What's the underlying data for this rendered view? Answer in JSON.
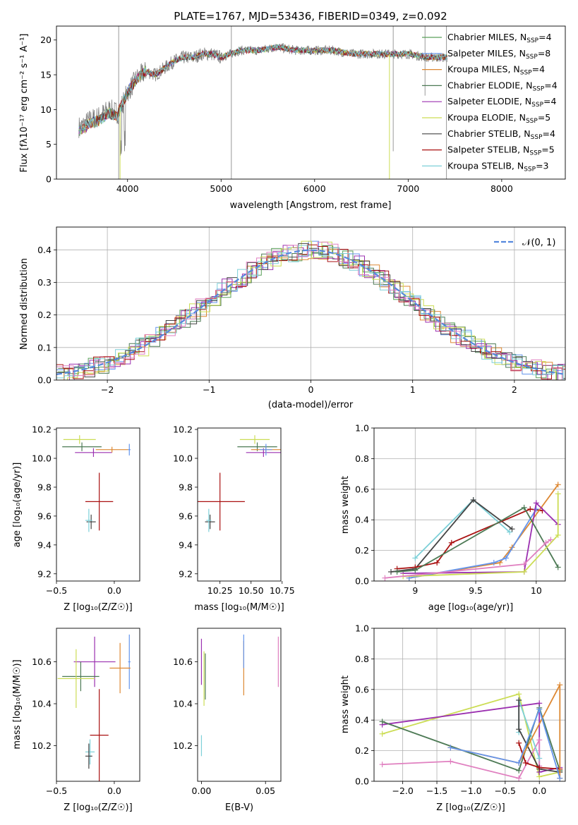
{
  "chart_data": [
    {
      "type": "line",
      "title": "PLATE=1767, MJD=53436, FIBERID=0349, z=0.092",
      "xlabel": "wavelength [Angstrom, rest frame]",
      "ylabel": "Flux [fλ10⁻¹⁷ erg cm⁻² s⁻¹ A⁻¹]",
      "xlim": [
        3240,
        8680
      ],
      "ylim": [
        0,
        22
      ],
      "xticks": [
        4000,
        5000,
        6000,
        7000,
        8000
      ],
      "yticks": [
        0,
        5,
        10,
        15,
        20
      ],
      "x": [
        3500,
        3600,
        3700,
        3800,
        3900,
        4000,
        4100,
        4200,
        4300,
        4400,
        4500,
        4600,
        4700,
        4800,
        4900,
        5000,
        5200,
        5400,
        5600,
        5800,
        6000,
        6200,
        6400,
        6600,
        6800,
        7000,
        7200,
        7400
      ],
      "series_values": [
        7.5,
        8.5,
        9.0,
        10.0,
        9.5,
        12.5,
        14.5,
        15.5,
        15.0,
        16.0,
        17.0,
        17.5,
        17.5,
        18.0,
        18.0,
        17.5,
        18.5,
        18.5,
        19.0,
        18.5,
        18.5,
        18.5,
        18.0,
        18.0,
        18.0,
        18.0,
        17.5,
        17.5
      ],
      "legend_placement": "upper right",
      "series": [
        {
          "name": "Chabrier MILES, N_SSP=4",
          "color": "#5aa05a"
        },
        {
          "name": "Salpeter MILES, N_SSP=8",
          "color": "#6495ed"
        },
        {
          "name": "Kroupa MILES, N_SSP=4",
          "color": "#dd8833"
        },
        {
          "name": "Chabrier ELODIE, N_SSP=4",
          "color": "#4d7a55"
        },
        {
          "name": "Salpeter ELODIE, N_SSP=4",
          "color": "#9b30b0"
        },
        {
          "name": "Kroupa ELODIE, N_SSP=5",
          "color": "#ccdd55"
        },
        {
          "name": "Chabrier STELIB, N_SSP=4",
          "color": "#444444"
        },
        {
          "name": "Salpeter STELIB, N_SSP=5",
          "color": "#aa1111"
        },
        {
          "name": "Kroupa STELIB, N_SSP=3",
          "color": "#7dd0d8"
        }
      ],
      "legend": [
        {
          "pre": "Chabrier MILES, N",
          "sub": "SSP",
          "post": "=4"
        },
        {
          "pre": "Salpeter MILES, N",
          "sub": "SSP",
          "post": "=8"
        },
        {
          "pre": "Kroupa MILES, N",
          "sub": "SSP",
          "post": "=4"
        },
        {
          "pre": "Chabrier ELODIE, N",
          "sub": "SSP",
          "post": "=4"
        },
        {
          "pre": "Salpeter ELODIE, N",
          "sub": "SSP",
          "post": "=4"
        },
        {
          "pre": "Kroupa ELODIE, N",
          "sub": "SSP",
          "post": "=5"
        },
        {
          "pre": "Chabrier STELIB, N",
          "sub": "SSP",
          "post": "=4"
        },
        {
          "pre": "Salpeter STELIB, N",
          "sub": "SSP",
          "post": "=5"
        },
        {
          "pre": "Kroupa STELIB, N",
          "sub": "SSP",
          "post": "=3"
        }
      ]
    },
    {
      "type": "area",
      "xlabel": "(data-model)/error",
      "ylabel": "Normed distribution",
      "xlim": [
        -2.5,
        2.5
      ],
      "ylim": [
        0,
        0.47
      ],
      "xticks": [
        -2,
        -1,
        0,
        1,
        2
      ],
      "xtick_labels": [
        "−2",
        "−1",
        "0",
        "1",
        "2"
      ],
      "yticks": [
        0.0,
        0.1,
        0.2,
        0.3,
        0.4
      ],
      "grid": true,
      "legend_label": "𝒩(0, 1)",
      "legend_placement": "upper right",
      "curve_color": "#5588dd",
      "hist_colors": [
        "#5aa05a",
        "#6495ed",
        "#dd8833",
        "#4d7a55",
        "#9b30b0",
        "#ccdd55",
        "#444444",
        "#aa1111",
        "#7dd0d8",
        "#e080c0"
      ]
    },
    {
      "type": "scatter",
      "xlabel": "Z [log₁₀(Z/Z☉)]",
      "ylabel": "age  [log₁₀(age/yr)]",
      "xlim": [
        -0.5,
        0.22
      ],
      "ylim": [
        9.15,
        10.21
      ],
      "xticks": [
        -0.5,
        0.0
      ],
      "xtick_labels": [
        "−0.5",
        "0.0"
      ],
      "yticks": [
        9.2,
        9.4,
        9.6,
        9.8,
        10.0,
        10.2
      ],
      "points": [
        {
          "x": -0.3,
          "y": 10.13,
          "xerr": 0.14,
          "yerr": 0.03,
          "color": "#ccdd55"
        },
        {
          "x": -0.28,
          "y": 10.08,
          "xerr": 0.17,
          "yerr": 0.03,
          "color": "#4d7a55"
        },
        {
          "x": -0.18,
          "y": 10.04,
          "xerr": 0.16,
          "yerr": 0.03,
          "color": "#9b30b0"
        },
        {
          "x": -0.02,
          "y": 10.06,
          "xerr": 0.14,
          "yerr": 0.02,
          "color": "#dd8833"
        },
        {
          "x": 0.13,
          "y": 10.06,
          "xerr": 0.01,
          "yerr": 0.04,
          "color": "#6495ed"
        },
        {
          "x": -0.2,
          "y": 9.56,
          "xerr": 0.04,
          "yerr": 0.05,
          "color": "#444444"
        },
        {
          "x": -0.22,
          "y": 9.57,
          "xerr": 0.03,
          "yerr": 0.08,
          "color": "#7dd0d8"
        },
        {
          "x": -0.13,
          "y": 9.7,
          "xerr": 0.12,
          "yerr": 0.2,
          "color": "#aa1111"
        }
      ]
    },
    {
      "type": "scatter",
      "xlabel": "mass [log₁₀(M/M☉)]",
      "xlim": [
        10.07,
        10.74
      ],
      "ylim": [
        9.15,
        10.21
      ],
      "xticks": [
        10.25,
        10.5,
        10.75
      ],
      "xtick_labels": [
        "10.25",
        "10.50",
        "10.75"
      ],
      "yticks": [
        9.2,
        9.4,
        9.6,
        9.8,
        10.0,
        10.2
      ],
      "points": [
        {
          "x": 10.53,
          "y": 10.13,
          "xerr": 0.12,
          "yerr": 0.03,
          "color": "#ccdd55"
        },
        {
          "x": 10.55,
          "y": 10.08,
          "xerr": 0.16,
          "yerr": 0.03,
          "color": "#4d7a55"
        },
        {
          "x": 10.6,
          "y": 10.04,
          "xerr": 0.14,
          "yerr": 0.03,
          "color": "#9b30b0"
        },
        {
          "x": 10.62,
          "y": 10.06,
          "xerr": 0.12,
          "yerr": 0.02,
          "color": "#dd8833"
        },
        {
          "x": 10.62,
          "y": 10.06,
          "xerr": 0.05,
          "yerr": 0.04,
          "color": "#6495ed"
        },
        {
          "x": 10.17,
          "y": 9.56,
          "xerr": 0.04,
          "yerr": 0.05,
          "color": "#444444"
        },
        {
          "x": 10.16,
          "y": 9.57,
          "xerr": 0.02,
          "yerr": 0.08,
          "color": "#7dd0d8"
        },
        {
          "x": 10.25,
          "y": 9.7,
          "xerr": 0.2,
          "yerr": 0.2,
          "color": "#aa1111"
        }
      ]
    },
    {
      "type": "line",
      "xlabel": "age  [log₁₀(age/yr)]",
      "ylabel": "mass weight",
      "xlim": [
        8.66,
        10.24
      ],
      "ylim": [
        0,
        1.0
      ],
      "xticks": [
        9.0,
        9.5,
        10.0
      ],
      "yticks": [
        0.0,
        0.2,
        0.4,
        0.6,
        0.8,
        1.0
      ],
      "grid": true,
      "series": [
        {
          "color": "#7dd0d8",
          "x": [
            9.0,
            9.48,
            9.78
          ],
          "y": [
            0.15,
            0.53,
            0.32
          ]
        },
        {
          "color": "#444444",
          "x": [
            8.8,
            9.0,
            9.48,
            9.8
          ],
          "y": [
            0.06,
            0.08,
            0.53,
            0.34
          ]
        },
        {
          "color": "#aa1111",
          "x": [
            8.85,
            9.0,
            9.18,
            9.3,
            9.95,
            10.05
          ],
          "y": [
            0.08,
            0.09,
            0.12,
            0.25,
            0.47,
            0.46
          ]
        },
        {
          "color": "#dd8833",
          "x": [
            8.95,
            9.7,
            9.8,
            10.18
          ],
          "y": [
            0.02,
            0.12,
            0.22,
            0.63
          ]
        },
        {
          "color": "#6495ed",
          "x": [
            8.95,
            9.65,
            9.75,
            10.0
          ],
          "y": [
            0.02,
            0.12,
            0.15,
            0.47
          ]
        },
        {
          "color": "#9b30b0",
          "x": [
            8.9,
            9.9,
            10.0,
            10.18
          ],
          "y": [
            0.05,
            0.06,
            0.51,
            0.37
          ]
        },
        {
          "color": "#4d7a55",
          "x": [
            8.85,
            9.0,
            9.9,
            10.18
          ],
          "y": [
            0.06,
            0.07,
            0.48,
            0.09
          ]
        },
        {
          "color": "#ccdd55",
          "x": [
            8.9,
            9.9,
            10.18,
            10.18
          ],
          "y": [
            0.03,
            0.06,
            0.3,
            0.57
          ]
        },
        {
          "color": "#e080c0",
          "x": [
            8.75,
            9.9,
            10.08,
            10.12
          ],
          "y": [
            0.02,
            0.11,
            0.25,
            0.27
          ]
        }
      ]
    },
    {
      "type": "scatter",
      "xlabel": "Z [log₁₀(Z/Z☉)]",
      "ylabel": "mass [log₁₀(M/M☉)]",
      "xlim": [
        -0.5,
        0.22
      ],
      "ylim": [
        10.03,
        10.76
      ],
      "xticks": [
        -0.5,
        0.0
      ],
      "xtick_labels": [
        "−0.5",
        "0.0"
      ],
      "yticks": [
        10.2,
        10.4,
        10.6
      ],
      "points": [
        {
          "x": -0.17,
          "y": 10.6,
          "xerr": 0.18,
          "yerr": 0.12,
          "color": "#9b30b0"
        },
        {
          "x": 0.13,
          "y": 10.6,
          "xerr": 0.01,
          "yerr": 0.13,
          "color": "#6495ed"
        },
        {
          "x": 0.05,
          "y": 10.57,
          "xerr": 0.09,
          "yerr": 0.12,
          "color": "#dd8833"
        },
        {
          "x": -0.29,
          "y": 10.53,
          "xerr": 0.16,
          "yerr": 0.07,
          "color": "#4d7a55"
        },
        {
          "x": -0.33,
          "y": 10.52,
          "xerr": 0.16,
          "yerr": 0.14,
          "color": "#ccdd55"
        },
        {
          "x": -0.13,
          "y": 10.25,
          "xerr": 0.08,
          "yerr": 0.22,
          "color": "#aa1111"
        },
        {
          "x": -0.21,
          "y": 10.17,
          "xerr": 0.04,
          "yerr": 0.06,
          "color": "#7dd0d8"
        },
        {
          "x": -0.22,
          "y": 10.15,
          "xerr": 0.03,
          "yerr": 0.06,
          "color": "#444444"
        }
      ]
    },
    {
      "type": "scatter",
      "xlabel": "E(B-V)",
      "xlim": [
        -0.003,
        0.062
      ],
      "ylim": [
        10.03,
        10.76
      ],
      "xticks": [
        0.0,
        0.05
      ],
      "xtick_labels": [
        "0.00",
        "0.05"
      ],
      "yticks": [
        10.2,
        10.4,
        10.6
      ],
      "points": [
        {
          "x": 0.0,
          "y": 10.2,
          "yerr": 0.05,
          "color": "#7dd0d8"
        },
        {
          "x": 0.0,
          "y": 10.6,
          "yerr": 0.11,
          "color": "#9b30b0"
        },
        {
          "x": 0.002,
          "y": 10.52,
          "yerr": 0.13,
          "color": "#ccdd55"
        },
        {
          "x": 0.003,
          "y": 10.53,
          "yerr": 0.11,
          "color": "#4d7a55"
        },
        {
          "x": 0.033,
          "y": 10.57,
          "yerr": 0.13,
          "color": "#dd8833"
        },
        {
          "x": 0.033,
          "y": 10.65,
          "yerr": 0.08,
          "color": "#6495ed"
        },
        {
          "x": 0.06,
          "y": 10.6,
          "yerr": 0.12,
          "color": "#e080c0"
        }
      ]
    },
    {
      "type": "line",
      "xlabel": "Z [log₁₀(Z/Z☉)]",
      "ylabel": "mass weight",
      "xlim": [
        -2.42,
        0.38
      ],
      "ylim": [
        0,
        1.0
      ],
      "xticks": [
        -2.0,
        -1.5,
        -1.0,
        -0.5,
        0.0
      ],
      "xtick_labels": [
        "−2.0",
        "−1.5",
        "−1.0",
        "−0.5",
        "0.0"
      ],
      "yticks": [
        0.0,
        0.2,
        0.4,
        0.6,
        0.8,
        1.0
      ],
      "grid": true,
      "series": [
        {
          "color": "#ccdd55",
          "x": [
            -2.3,
            -0.3,
            0.0,
            0.3
          ],
          "y": [
            0.31,
            0.57,
            0.03,
            0.06
          ]
        },
        {
          "color": "#9b30b0",
          "x": [
            -2.3,
            0.0,
            0.0,
            0.3
          ],
          "y": [
            0.37,
            0.51,
            0.06,
            0.09
          ]
        },
        {
          "color": "#e080c0",
          "x": [
            -2.3,
            -1.3,
            -0.3,
            0.0,
            0.0
          ],
          "y": [
            0.11,
            0.13,
            0.02,
            0.27,
            0.1
          ]
        },
        {
          "color": "#4d7a55",
          "x": [
            -2.3,
            -0.3,
            0.0,
            0.3
          ],
          "y": [
            0.39,
            0.07,
            0.48,
            0.07
          ]
        },
        {
          "color": "#7dd0d8",
          "x": [
            -0.3,
            -0.3,
            0.0
          ],
          "y": [
            0.32,
            0.53,
            0.15
          ]
        },
        {
          "color": "#444444",
          "x": [
            -0.3,
            -0.3,
            0.0,
            0.3
          ],
          "y": [
            0.53,
            0.34,
            0.08,
            0.06
          ]
        },
        {
          "color": "#aa1111",
          "x": [
            -0.3,
            -0.2,
            0.0,
            0.3
          ],
          "y": [
            0.25,
            0.12,
            0.09,
            0.08
          ]
        },
        {
          "color": "#dd8833",
          "x": [
            -1.3,
            -0.3,
            0.3,
            0.3
          ],
          "y": [
            0.22,
            0.12,
            0.63,
            0.02
          ]
        },
        {
          "color": "#6495ed",
          "x": [
            -1.3,
            -0.3,
            0.0,
            0.3
          ],
          "y": [
            0.22,
            0.12,
            0.47,
            0.02
          ]
        }
      ]
    }
  ]
}
